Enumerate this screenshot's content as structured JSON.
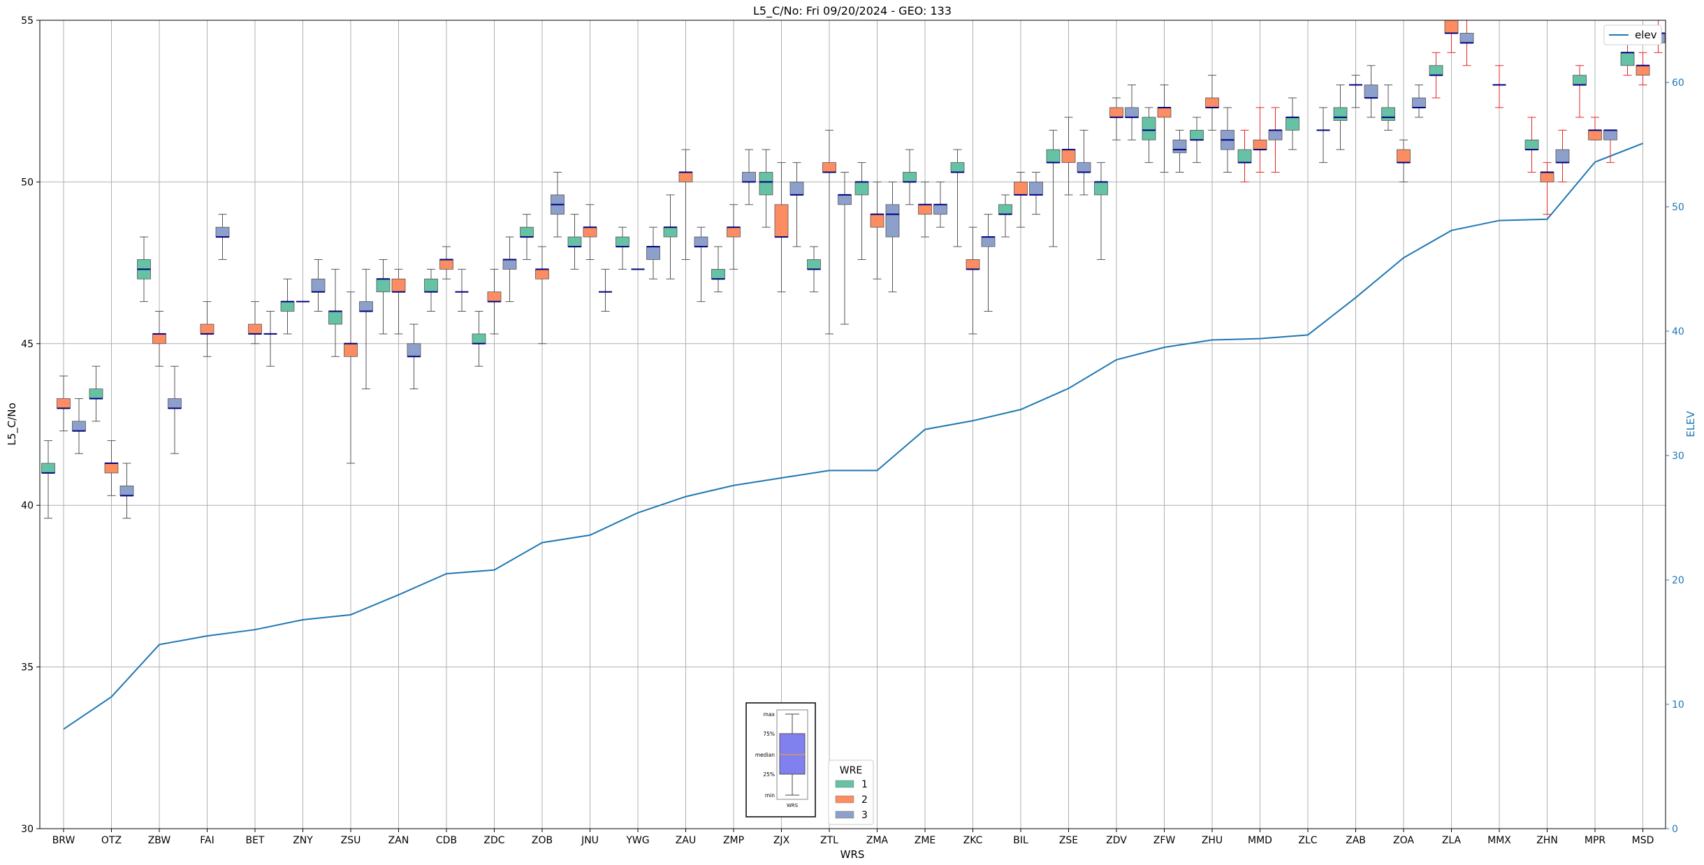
{
  "chart_data": {
    "type": "box",
    "title": "L5_C/No: Fri 09/20/2024 - GEO: 133",
    "xlabel": "WRS",
    "ylabel": "L5_C/No",
    "y2label": "ELEV",
    "ylim": [
      30,
      55
    ],
    "y2lim": [
      0,
      65
    ],
    "yticks": [
      30,
      35,
      40,
      45,
      50,
      55
    ],
    "y2ticks": [
      0,
      10,
      20,
      30,
      40,
      50,
      60
    ],
    "grid": true,
    "categories": [
      "BRW",
      "OTZ",
      "ZBW",
      "FAI",
      "BET",
      "ZNY",
      "ZSU",
      "ZAN",
      "CDB",
      "ZDC",
      "ZOB",
      "JNU",
      "YWG",
      "ZAU",
      "ZMP",
      "ZJX",
      "ZTL",
      "ZMA",
      "ZME",
      "ZKC",
      "BIL",
      "ZSE",
      "ZDV",
      "ZFW",
      "ZHU",
      "MMD",
      "ZLC",
      "ZAB",
      "ZOA",
      "ZLA",
      "MMX",
      "ZHN",
      "MPR",
      "MSD"
    ],
    "series": [
      {
        "name": "1",
        "color": "#66c2a5",
        "boxes": [
          [
            39.6,
            41.0,
            41.0,
            41.3,
            42.0
          ],
          [
            42.6,
            43.3,
            43.3,
            43.6,
            44.3
          ],
          [
            46.3,
            47.0,
            47.3,
            47.6,
            48.3
          ],
          null,
          null,
          [
            45.3,
            46.0,
            46.3,
            46.3,
            47.0
          ],
          [
            44.6,
            45.6,
            46.0,
            46.0,
            47.3
          ],
          [
            45.3,
            46.6,
            47.0,
            47.0,
            47.6
          ],
          [
            46.0,
            46.6,
            46.6,
            47.0,
            47.3
          ],
          [
            44.3,
            45.0,
            45.0,
            45.3,
            46.0
          ],
          [
            47.6,
            48.3,
            48.3,
            48.6,
            49.0
          ],
          [
            47.3,
            48.0,
            48.0,
            48.3,
            49.0
          ],
          [
            47.3,
            48.0,
            48.0,
            48.3,
            48.6
          ],
          [
            47.0,
            48.3,
            48.6,
            48.6,
            49.6
          ],
          [
            46.6,
            47.0,
            47.0,
            47.3,
            48.0
          ],
          [
            48.6,
            49.6,
            50.0,
            50.3,
            51.0
          ],
          [
            46.6,
            47.3,
            47.3,
            47.6,
            48.0
          ],
          [
            47.6,
            49.6,
            50.0,
            50.0,
            50.6
          ],
          [
            49.3,
            50.0,
            50.0,
            50.3,
            51.0
          ],
          [
            48.0,
            50.3,
            50.3,
            50.6,
            51.0
          ],
          [
            48.3,
            49.0,
            49.0,
            49.3,
            49.6
          ],
          [
            48.0,
            50.6,
            50.6,
            51.0,
            51.6
          ],
          [
            47.6,
            49.6,
            50.0,
            50.0,
            50.6
          ],
          [
            50.6,
            51.3,
            51.6,
            52.0,
            52.3
          ],
          [
            50.6,
            51.3,
            51.3,
            51.6,
            52.0
          ],
          [
            50.0,
            50.6,
            50.6,
            51.0,
            51.6
          ],
          [
            51.0,
            51.6,
            52.0,
            52.0,
            52.6
          ],
          [
            51.0,
            51.9,
            52.0,
            52.3,
            53.0
          ],
          [
            51.6,
            51.9,
            52.0,
            52.3,
            53.0
          ],
          [
            52.6,
            53.3,
            53.3,
            53.6,
            54.0
          ],
          null,
          [
            50.3,
            51.0,
            51.0,
            51.3,
            52.0
          ],
          [
            52.0,
            53.0,
            53.0,
            53.3,
            53.6
          ],
          [
            53.3,
            53.6,
            54.0,
            54.0,
            54.3
          ]
        ]
      },
      {
        "name": "2",
        "color": "#fc8d62",
        "boxes": [
          [
            42.3,
            43.0,
            43.0,
            43.3,
            44.0
          ],
          [
            40.3,
            41.0,
            41.3,
            41.3,
            42.0
          ],
          [
            44.3,
            45.0,
            45.3,
            45.3,
            46.0
          ],
          [
            44.6,
            45.3,
            45.3,
            45.6,
            46.3
          ],
          [
            45.0,
            45.3,
            45.3,
            45.6,
            46.3
          ],
          [
            46.3,
            46.3,
            46.3,
            46.3,
            46.3
          ],
          [
            41.3,
            44.6,
            45.0,
            45.0,
            46.6
          ],
          [
            45.3,
            46.6,
            46.6,
            47.0,
            47.3
          ],
          [
            47.0,
            47.3,
            47.6,
            47.6,
            48.0
          ],
          [
            45.3,
            46.3,
            46.3,
            46.6,
            47.3
          ],
          [
            45.0,
            47.0,
            47.3,
            47.3,
            48.0
          ],
          [
            47.6,
            48.3,
            48.6,
            48.6,
            49.3
          ],
          [
            47.3,
            47.3,
            47.3,
            47.3,
            47.3
          ],
          [
            47.6,
            50.0,
            50.3,
            50.3,
            51.0
          ],
          [
            47.3,
            48.3,
            48.6,
            48.6,
            49.3
          ],
          [
            46.6,
            48.3,
            48.3,
            49.3,
            50.6
          ],
          [
            45.3,
            50.3,
            50.3,
            50.6,
            51.6
          ],
          [
            47.0,
            48.6,
            49.0,
            49.0,
            50.0
          ],
          [
            48.3,
            49.0,
            49.3,
            49.3,
            50.0
          ],
          [
            45.3,
            47.3,
            47.3,
            47.6,
            48.6
          ],
          [
            48.6,
            49.6,
            49.6,
            50.0,
            50.3
          ],
          [
            49.6,
            50.6,
            51.0,
            51.0,
            52.0
          ],
          [
            51.3,
            52.0,
            52.0,
            52.3,
            52.6
          ],
          [
            50.3,
            52.0,
            52.3,
            52.3,
            53.0
          ],
          [
            51.6,
            52.3,
            52.3,
            52.6,
            53.3
          ],
          [
            50.3,
            51.0,
            51.0,
            51.3,
            52.3
          ],
          null,
          [
            52.3,
            53.0,
            53.0,
            53.0,
            53.3
          ],
          [
            50.0,
            50.6,
            50.6,
            51.0,
            51.3
          ],
          [
            54.0,
            54.6,
            54.6,
            55.0,
            55.0
          ],
          [
            52.3,
            53.0,
            53.0,
            53.0,
            53.6
          ],
          [
            49.0,
            50.0,
            50.3,
            50.3,
            50.6
          ],
          [
            51.3,
            51.3,
            51.6,
            51.6,
            52.0
          ],
          [
            53.0,
            53.3,
            53.6,
            53.6,
            54.0
          ]
        ]
      },
      {
        "name": "3",
        "color": "#8da0cb",
        "boxes": [
          [
            41.6,
            42.3,
            42.3,
            42.6,
            43.3
          ],
          [
            39.6,
            40.3,
            40.3,
            40.6,
            41.3
          ],
          [
            41.6,
            43.0,
            43.0,
            43.3,
            44.3
          ],
          [
            47.6,
            48.3,
            48.3,
            48.6,
            49.0
          ],
          [
            44.3,
            45.3,
            45.3,
            45.3,
            46.0
          ],
          [
            46.0,
            46.6,
            46.6,
            47.0,
            47.6
          ],
          [
            43.6,
            46.0,
            46.0,
            46.3,
            47.3
          ],
          [
            43.6,
            44.6,
            44.6,
            45.0,
            45.6
          ],
          [
            46.0,
            46.6,
            46.6,
            46.6,
            47.3
          ],
          [
            46.3,
            47.3,
            47.6,
            47.6,
            48.3
          ],
          [
            48.3,
            49.0,
            49.3,
            49.6,
            50.3
          ],
          [
            46.0,
            46.6,
            46.6,
            46.6,
            47.3
          ],
          [
            47.0,
            47.6,
            48.0,
            48.0,
            48.6
          ],
          [
            46.3,
            48.0,
            48.0,
            48.3,
            48.6
          ],
          [
            49.3,
            50.0,
            50.0,
            50.3,
            51.0
          ],
          [
            48.0,
            49.6,
            49.6,
            50.0,
            50.6
          ],
          [
            45.6,
            49.3,
            49.6,
            49.6,
            50.3
          ],
          [
            46.6,
            48.3,
            49.0,
            49.3,
            50.0
          ],
          [
            48.6,
            49.0,
            49.3,
            49.3,
            50.0
          ],
          [
            46.0,
            48.0,
            48.3,
            48.3,
            49.0
          ],
          [
            49.0,
            49.6,
            49.6,
            50.0,
            50.3
          ],
          [
            49.6,
            50.3,
            50.3,
            50.6,
            51.6
          ],
          [
            51.3,
            52.0,
            52.0,
            52.3,
            53.0
          ],
          [
            50.3,
            50.9,
            51.0,
            51.3,
            51.6
          ],
          [
            50.3,
            51.0,
            51.3,
            51.6,
            52.3
          ],
          [
            50.3,
            51.3,
            51.6,
            51.6,
            52.3
          ],
          [
            50.6,
            51.6,
            51.6,
            51.6,
            52.3
          ],
          [
            52.0,
            52.6,
            52.6,
            53.0,
            53.6
          ],
          [
            52.0,
            52.3,
            52.3,
            52.6,
            53.0
          ],
          [
            53.6,
            54.3,
            54.3,
            54.6,
            55.0
          ],
          null,
          [
            50.0,
            50.6,
            50.6,
            51.0,
            51.6
          ],
          [
            50.6,
            51.3,
            51.6,
            51.6,
            51.6
          ],
          [
            54.0,
            54.3,
            54.6,
            54.6,
            55.0
          ]
        ]
      }
    ],
    "elev": {
      "name": "elev",
      "color": "#1f77b4",
      "values": [
        8.0,
        10.6,
        14.8,
        15.5,
        16.0,
        16.8,
        17.2,
        18.8,
        20.5,
        20.8,
        23.0,
        23.6,
        25.4,
        26.7,
        27.6,
        28.2,
        28.8,
        28.8,
        32.1,
        32.8,
        33.7,
        35.4,
        37.7,
        38.7,
        39.3,
        39.4,
        39.7,
        42.7,
        45.9,
        48.1,
        48.9,
        49.0,
        53.6,
        55.1
      ]
    },
    "legend": {
      "title": "WRE",
      "entries": [
        "1",
        "2",
        "3"
      ],
      "placement": "bottom-center"
    },
    "key_labels": [
      "max",
      "75%",
      "median",
      "25%",
      "min",
      "WRS"
    ]
  }
}
